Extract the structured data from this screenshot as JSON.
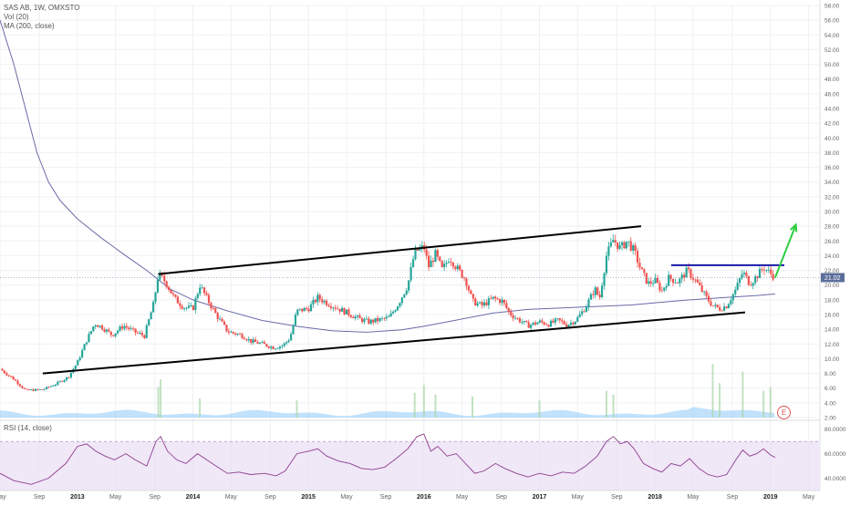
{
  "legend": {
    "symbol": "SAS AB, 1W, OMXSTO",
    "vol": "Vol (20)",
    "ma": "MA (200, close)",
    "rsi": "RSI (14, close)"
  },
  "earnings_badge": "E",
  "last_price": "21.02",
  "colors": {
    "up": "#26a69a",
    "down": "#ef5350",
    "ma": "#6a6aa8",
    "volume": "#90caf9",
    "rsi_line": "#8e3f8e",
    "rsi_band": "#e9ddf3",
    "trendline": "#000000",
    "resistance": "#1a1aa8",
    "arrow": "#2ecc40",
    "last_price_tag": "#5b6e9a"
  },
  "chart_data": {
    "type": "candlestick",
    "price_axis": {
      "ticks": [
        "2.00",
        "4.00",
        "6.00",
        "8.00",
        "10.00",
        "12.00",
        "14.00",
        "16.00",
        "18.00",
        "20.00",
        "22.00",
        "24.00",
        "26.00",
        "28.00",
        "30.00",
        "32.00",
        "34.00",
        "36.00",
        "38.00",
        "40.00",
        "42.00",
        "44.00",
        "46.00",
        "48.00",
        "50.00",
        "52.00",
        "54.00",
        "56.00",
        "58.00"
      ],
      "range": [
        2,
        58
      ]
    },
    "rsi_axis": {
      "ticks": [
        "80.0000",
        "60.0000",
        "40.0000"
      ],
      "range": [
        30,
        85
      ],
      "band": [
        30,
        70
      ]
    },
    "time_axis": {
      "ticks": [
        "May",
        "Sep",
        "2013",
        "May",
        "Sep",
        "2014",
        "May",
        "Sep",
        "2015",
        "May",
        "Sep",
        "2016",
        "May",
        "Sep",
        "2017",
        "May",
        "Sep",
        "2018",
        "May",
        "Sep",
        "2019",
        "May"
      ],
      "start": 2012.33,
      "end": 2019.42
    },
    "price_path": [
      [
        2012.33,
        8.6
      ],
      [
        2012.45,
        7.2
      ],
      [
        2012.55,
        5.7
      ],
      [
        2012.7,
        5.8
      ],
      [
        2012.82,
        6.6
      ],
      [
        2012.92,
        7.5
      ],
      [
        2013.0,
        9.5
      ],
      [
        2013.08,
        12.5
      ],
      [
        2013.15,
        14.8
      ],
      [
        2013.22,
        14.2
      ],
      [
        2013.3,
        13.2
      ],
      [
        2013.4,
        14.5
      ],
      [
        2013.5,
        13.6
      ],
      [
        2013.58,
        13.1
      ],
      [
        2013.66,
        17.5
      ],
      [
        2013.7,
        21.5
      ],
      [
        2013.76,
        20.5
      ],
      [
        2013.84,
        18.2
      ],
      [
        2013.92,
        17.0
      ],
      [
        2014.0,
        16.8
      ],
      [
        2014.06,
        20.0
      ],
      [
        2014.12,
        18.2
      ],
      [
        2014.2,
        16.0
      ],
      [
        2014.3,
        13.7
      ],
      [
        2014.42,
        13.2
      ],
      [
        2014.5,
        12.4
      ],
      [
        2014.6,
        12.0
      ],
      [
        2014.7,
        11.5
      ],
      [
        2014.78,
        11.8
      ],
      [
        2014.84,
        12.8
      ],
      [
        2014.9,
        16.5
      ],
      [
        2015.0,
        16.8
      ],
      [
        2015.08,
        18.3
      ],
      [
        2015.16,
        17.6
      ],
      [
        2015.26,
        16.8
      ],
      [
        2015.34,
        16.2
      ],
      [
        2015.44,
        15.4
      ],
      [
        2015.52,
        15.0
      ],
      [
        2015.62,
        15.3
      ],
      [
        2015.7,
        15.6
      ],
      [
        2015.78,
        17.5
      ],
      [
        2015.86,
        20.0
      ],
      [
        2015.92,
        24.5
      ],
      [
        2016.0,
        25.2
      ],
      [
        2016.04,
        22.5
      ],
      [
        2016.1,
        24.2
      ],
      [
        2016.16,
        22.0
      ],
      [
        2016.22,
        23.8
      ],
      [
        2016.3,
        22.0
      ],
      [
        2016.36,
        20.8
      ],
      [
        2016.42,
        17.8
      ],
      [
        2016.5,
        17.2
      ],
      [
        2016.6,
        18.2
      ],
      [
        2016.68,
        17.8
      ],
      [
        2016.74,
        16.2
      ],
      [
        2016.8,
        15.5
      ],
      [
        2016.9,
        14.5
      ],
      [
        2017.0,
        15.0
      ],
      [
        2017.08,
        14.7
      ],
      [
        2017.16,
        15.2
      ],
      [
        2017.24,
        14.6
      ],
      [
        2017.32,
        15.3
      ],
      [
        2017.4,
        17.0
      ],
      [
        2017.48,
        19.5
      ],
      [
        2017.52,
        18.2
      ],
      [
        2017.58,
        24.0
      ],
      [
        2017.64,
        26.2
      ],
      [
        2017.7,
        25.0
      ],
      [
        2017.76,
        26.0
      ],
      [
        2017.82,
        24.6
      ],
      [
        2017.88,
        22.0
      ],
      [
        2017.94,
        20.2
      ],
      [
        2018.0,
        20.6
      ],
      [
        2018.06,
        19.2
      ],
      [
        2018.12,
        21.0
      ],
      [
        2018.2,
        20.4
      ],
      [
        2018.28,
        22.0
      ],
      [
        2018.36,
        20.4
      ],
      [
        2018.44,
        18.4
      ],
      [
        2018.5,
        17.2
      ],
      [
        2018.56,
        16.8
      ],
      [
        2018.62,
        17.2
      ],
      [
        2018.7,
        19.4
      ],
      [
        2018.76,
        21.8
      ],
      [
        2018.82,
        20.2
      ],
      [
        2018.88,
        21.2
      ],
      [
        2018.94,
        22.4
      ],
      [
        2019.0,
        21.6
      ],
      [
        2019.04,
        21.02
      ]
    ],
    "ma_path": [
      [
        2012.33,
        56.0
      ],
      [
        2012.45,
        50.0
      ],
      [
        2012.55,
        44.0
      ],
      [
        2012.65,
        38.0
      ],
      [
        2012.75,
        34.0
      ],
      [
        2012.85,
        31.5
      ],
      [
        2013.0,
        29.0
      ],
      [
        2013.2,
        26.5
      ],
      [
        2013.4,
        24.2
      ],
      [
        2013.6,
        22.0
      ],
      [
        2013.8,
        19.5
      ],
      [
        2014.0,
        18.0
      ],
      [
        2014.3,
        16.5
      ],
      [
        2014.6,
        15.2
      ],
      [
        2014.9,
        14.4
      ],
      [
        2015.2,
        13.8
      ],
      [
        2015.5,
        13.6
      ],
      [
        2015.8,
        13.9
      ],
      [
        2016.0,
        14.4
      ],
      [
        2016.3,
        15.3
      ],
      [
        2016.6,
        16.2
      ],
      [
        2016.9,
        16.7
      ],
      [
        2017.2,
        16.9
      ],
      [
        2017.5,
        17.1
      ],
      [
        2017.8,
        17.3
      ],
      [
        2018.0,
        17.6
      ],
      [
        2018.3,
        18.0
      ],
      [
        2018.6,
        18.3
      ],
      [
        2018.9,
        18.6
      ],
      [
        2019.04,
        18.8
      ]
    ],
    "rsi_path": [
      [
        2012.33,
        44
      ],
      [
        2012.45,
        38
      ],
      [
        2012.6,
        35
      ],
      [
        2012.75,
        40
      ],
      [
        2012.9,
        52
      ],
      [
        2013.0,
        66
      ],
      [
        2013.08,
        68
      ],
      [
        2013.16,
        62
      ],
      [
        2013.24,
        58
      ],
      [
        2013.32,
        55
      ],
      [
        2013.42,
        60
      ],
      [
        2013.5,
        55
      ],
      [
        2013.6,
        50
      ],
      [
        2013.68,
        70
      ],
      [
        2013.72,
        74
      ],
      [
        2013.78,
        62
      ],
      [
        2013.86,
        55
      ],
      [
        2013.94,
        52
      ],
      [
        2014.04,
        60
      ],
      [
        2014.12,
        55
      ],
      [
        2014.2,
        50
      ],
      [
        2014.3,
        44
      ],
      [
        2014.4,
        45
      ],
      [
        2014.5,
        43
      ],
      [
        2014.62,
        44
      ],
      [
        2014.72,
        42
      ],
      [
        2014.8,
        46
      ],
      [
        2014.9,
        60
      ],
      [
        2015.0,
        62
      ],
      [
        2015.08,
        64
      ],
      [
        2015.16,
        58
      ],
      [
        2015.26,
        54
      ],
      [
        2015.36,
        52
      ],
      [
        2015.46,
        48
      ],
      [
        2015.56,
        47
      ],
      [
        2015.66,
        49
      ],
      [
        2015.76,
        56
      ],
      [
        2015.86,
        64
      ],
      [
        2015.94,
        74
      ],
      [
        2016.0,
        76
      ],
      [
        2016.06,
        62
      ],
      [
        2016.12,
        66
      ],
      [
        2016.2,
        58
      ],
      [
        2016.28,
        60
      ],
      [
        2016.36,
        52
      ],
      [
        2016.44,
        44
      ],
      [
        2016.52,
        46
      ],
      [
        2016.62,
        52
      ],
      [
        2016.7,
        48
      ],
      [
        2016.8,
        44
      ],
      [
        2016.9,
        41
      ],
      [
        2017.0,
        44
      ],
      [
        2017.1,
        42
      ],
      [
        2017.2,
        45
      ],
      [
        2017.3,
        44
      ],
      [
        2017.4,
        50
      ],
      [
        2017.5,
        58
      ],
      [
        2017.58,
        70
      ],
      [
        2017.64,
        74
      ],
      [
        2017.7,
        68
      ],
      [
        2017.76,
        70
      ],
      [
        2017.82,
        64
      ],
      [
        2017.9,
        52
      ],
      [
        2017.98,
        48
      ],
      [
        2018.06,
        45
      ],
      [
        2018.14,
        52
      ],
      [
        2018.22,
        50
      ],
      [
        2018.3,
        56
      ],
      [
        2018.38,
        48
      ],
      [
        2018.46,
        43
      ],
      [
        2018.54,
        41
      ],
      [
        2018.62,
        43
      ],
      [
        2018.7,
        55
      ],
      [
        2018.76,
        63
      ],
      [
        2018.82,
        58
      ],
      [
        2018.88,
        60
      ],
      [
        2018.94,
        64
      ],
      [
        2019.0,
        59
      ],
      [
        2019.04,
        57
      ]
    ],
    "volume_spikes": [
      [
        2013.7,
        8
      ],
      [
        2013.72,
        10
      ],
      [
        2014.06,
        5
      ],
      [
        2014.9,
        4.5
      ],
      [
        2015.92,
        6.5
      ],
      [
        2016.0,
        8.5
      ],
      [
        2016.1,
        6
      ],
      [
        2016.42,
        5.5
      ],
      [
        2017.0,
        4.5
      ],
      [
        2017.58,
        7
      ],
      [
        2017.64,
        6
      ],
      [
        2018.5,
        14
      ],
      [
        2018.56,
        9
      ],
      [
        2018.76,
        12
      ],
      [
        2018.94,
        7
      ],
      [
        2019.0,
        8
      ]
    ],
    "annotations": {
      "channel_upper": [
        [
          2013.7,
          21.5
        ],
        [
          2017.88,
          28.0
        ]
      ],
      "channel_lower": [
        [
          2012.7,
          8.0
        ],
        [
          2018.78,
          16.3
        ]
      ],
      "resistance": [
        [
          2018.14,
          22.7
        ],
        [
          2019.12,
          22.7
        ]
      ],
      "arrow": [
        [
          2019.04,
          21.0
        ],
        [
          2019.22,
          28.2
        ]
      ]
    }
  }
}
